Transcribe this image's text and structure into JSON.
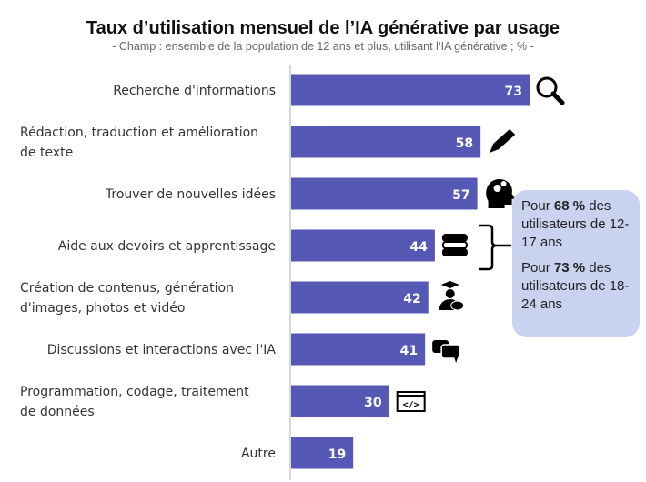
{
  "chart_data": {
    "type": "bar",
    "orientation": "horizontal",
    "title": "Taux d’utilisation mensuel de l’IA générative par usage",
    "subtitle": "- Champ : ensemble de la population de 12 ans et plus, utilisant l’IA générative ; % -",
    "categories": [
      [
        "Recherche d'informations"
      ],
      [
        "Rédaction, traduction et amélioration",
        "de texte"
      ],
      [
        "Trouver de nouvelles idées"
      ],
      [
        "Aide aux devoirs et apprentissage"
      ],
      [
        "Création de contenus, génération",
        "d'images, photos et vidéo"
      ],
      [
        "Discussions et interactions avec l'IA"
      ],
      [
        "Programmation, codage, traitement",
        "de données"
      ],
      [
        "Autre"
      ]
    ],
    "values": [
      73,
      58,
      57,
      44,
      42,
      41,
      30,
      19
    ],
    "icons": [
      "magnifier-icon",
      "pencil-icon",
      "head-gears-icon",
      "books-icon",
      "artist-icon",
      "chat-bubbles-icon",
      "code-window-icon",
      ""
    ],
    "bar_color": "#5558b5",
    "xlim": [
      0,
      100
    ],
    "annotation": {
      "p1": {
        "pre": "Pour ",
        "bold": "68 %",
        "post": " des utilisateurs de 12-17 ans"
      },
      "p2": {
        "pre": "Pour ",
        "bold": "73 %",
        "post": " des utilisateurs de 18-24 ans"
      },
      "color": "#c9d3ef"
    }
  }
}
